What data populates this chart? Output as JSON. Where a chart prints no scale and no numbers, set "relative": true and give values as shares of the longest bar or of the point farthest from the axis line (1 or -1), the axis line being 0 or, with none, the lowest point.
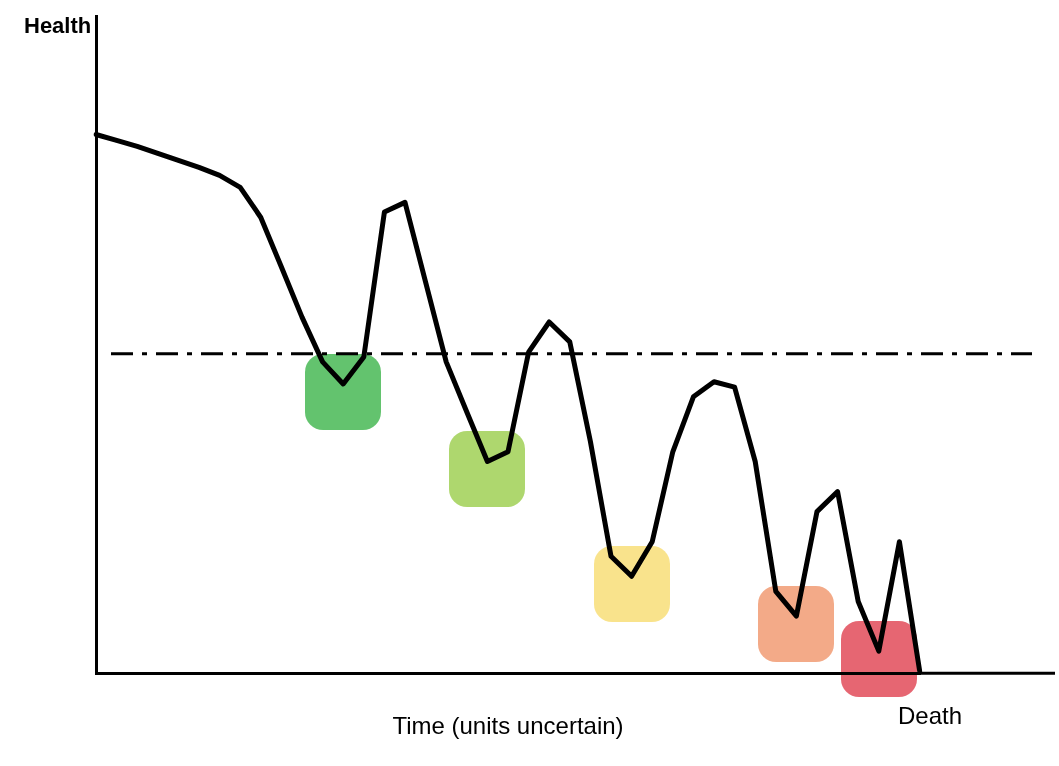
{
  "chart_data": {
    "type": "line",
    "relative": true,
    "ylabel": "Health",
    "xlabel": "Time (units uncertain)",
    "categories": [
      null,
      null,
      null,
      null,
      null,
      null,
      null,
      null,
      null,
      null,
      null,
      null,
      null,
      null,
      null,
      null,
      null,
      null,
      null,
      null,
      null,
      null,
      null,
      null,
      null,
      null,
      null,
      null,
      null,
      null,
      null,
      null,
      null,
      null,
      null,
      null,
      null,
      null,
      null,
      null,
      null
    ],
    "series": [
      {
        "color": "#000000",
        "values": [
          1.0,
          0.989,
          0.978,
          0.965,
          0.952,
          0.939,
          0.924,
          0.902,
          0.846,
          0.754,
          0.661,
          0.578,
          0.537,
          0.587,
          0.856,
          0.874,
          0.726,
          0.578,
          0.485,
          0.393,
          0.411,
          0.596,
          0.652,
          0.615,
          0.43,
          0.217,
          0.18,
          0.244,
          0.411,
          0.513,
          0.541,
          0.531,
          0.393,
          0.152,
          0.106,
          0.3,
          0.337,
          0.133,
          0.041,
          0.244,
          0.0
        ]
      }
    ],
    "ref_lines": [
      {
        "axis": "y",
        "value": 0.593,
        "color": "#000000",
        "line_style": "dashed"
      }
    ],
    "annotations": [
      "Death"
    ],
    "grid": false,
    "legend": false
  }
}
